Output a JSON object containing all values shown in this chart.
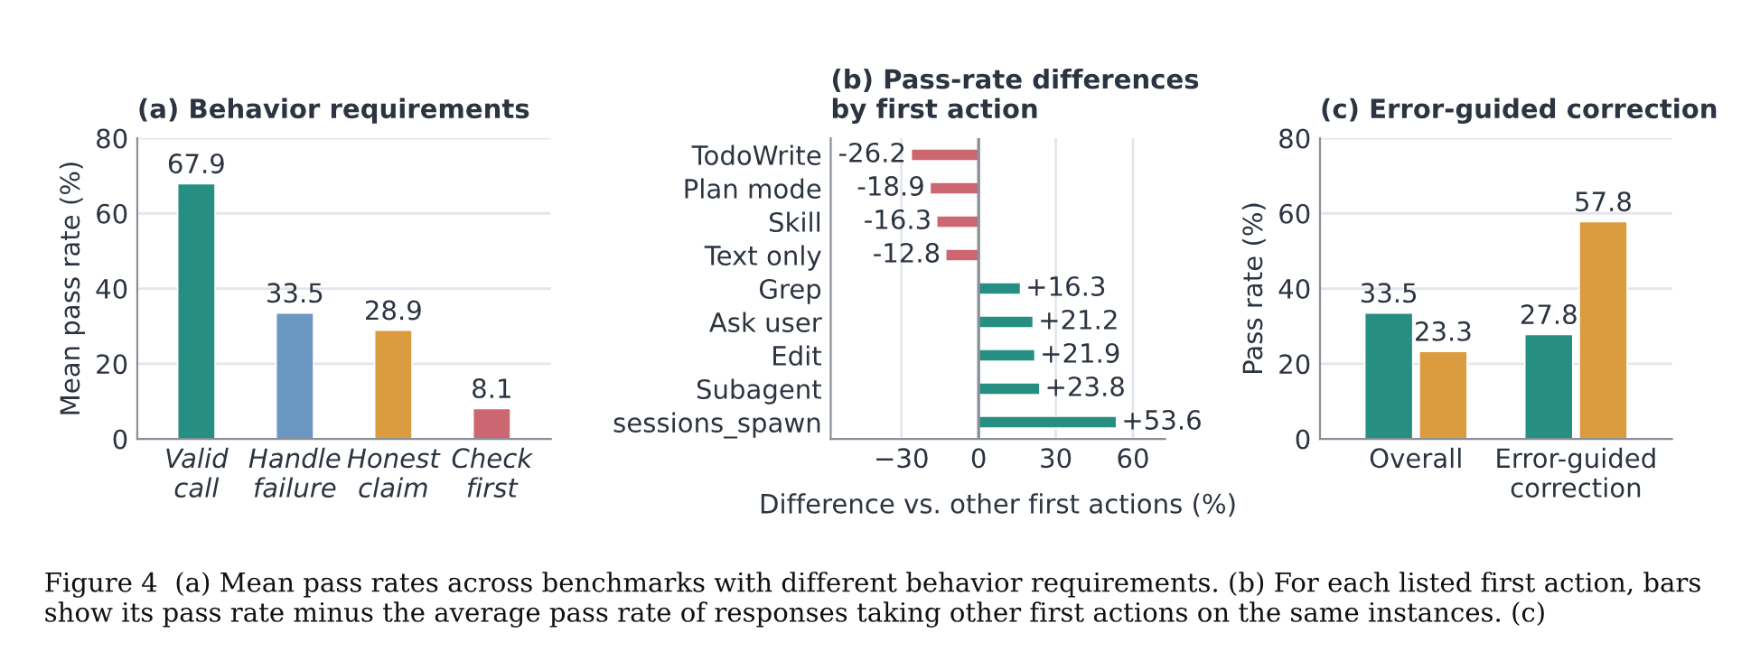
{
  "chart_data": [
    {
      "type": "bar",
      "title": "(a) Behavior requirements",
      "ylabel": "Mean pass rate (%)",
      "categories": [
        "Valid\ncall",
        "Handle\nfailure",
        "Honest\nclaim",
        "Check\nfirst"
      ],
      "values": [
        67.9,
        33.5,
        28.9,
        8.1
      ],
      "colors": [
        "#268f82",
        "#6b98c2",
        "#da9c3e",
        "#cc6670"
      ],
      "ylim": [
        0,
        80
      ],
      "yticks": [
        0,
        20,
        40,
        60,
        80
      ],
      "grid": "y",
      "data_labels": true,
      "annotations": [
        "Figure 4  (a) Mean pass rates across benchmarks with different behavior requirements. (b) For each listed first action, bars show its pass rate minus the average pass rate of responses taking other first actions on the same instances. (c)"
      ]
    },
    {
      "type": "bar",
      "orientation": "horizontal",
      "title": "(b) Pass-rate differences\nby first action",
      "xlabel": "Difference vs. other first actions (%)",
      "categories": [
        "TodoWrite",
        "Plan mode",
        "Skill",
        "Text only",
        "Grep",
        "Ask user",
        "Edit",
        "Subagent",
        "sessions_spawn"
      ],
      "values": [
        -26.2,
        -18.9,
        -16.3,
        -12.8,
        16.3,
        21.2,
        21.9,
        23.8,
        53.6
      ],
      "colors": [
        "#cc6670",
        "#cc6670",
        "#cc6670",
        "#cc6670",
        "#268f82",
        "#268f82",
        "#268f82",
        "#268f82",
        "#268f82"
      ],
      "value_labels": [
        "-26.2",
        "-18.9",
        "-16.3",
        "-12.8",
        "+16.3",
        "+21.2",
        "+21.9",
        "+23.8",
        "+53.6"
      ],
      "xlim": [
        -57.5,
        72.5
      ],
      "xticks": [
        {
          "value": -30,
          "label": "−30"
        },
        0,
        30,
        60
      ],
      "grid": "x",
      "ref_lines": [
        {
          "axis": "x",
          "value": 0,
          "color": "#8a9099"
        }
      ]
    },
    {
      "type": "bar",
      "title": "(c) Error-guided correction",
      "ylabel": "Pass rate (%)",
      "categories": [
        "Overall",
        "Error-guided\ncorrection"
      ],
      "series": [
        {
          "color": "#268f82",
          "values": [
            33.5,
            27.8
          ]
        },
        {
          "color": "#da9c3e",
          "values": [
            23.3,
            57.8
          ]
        }
      ],
      "ylim": [
        0,
        80
      ],
      "yticks": [
        0,
        20,
        40,
        60,
        80
      ],
      "grid": "y",
      "data_labels": true
    }
  ]
}
